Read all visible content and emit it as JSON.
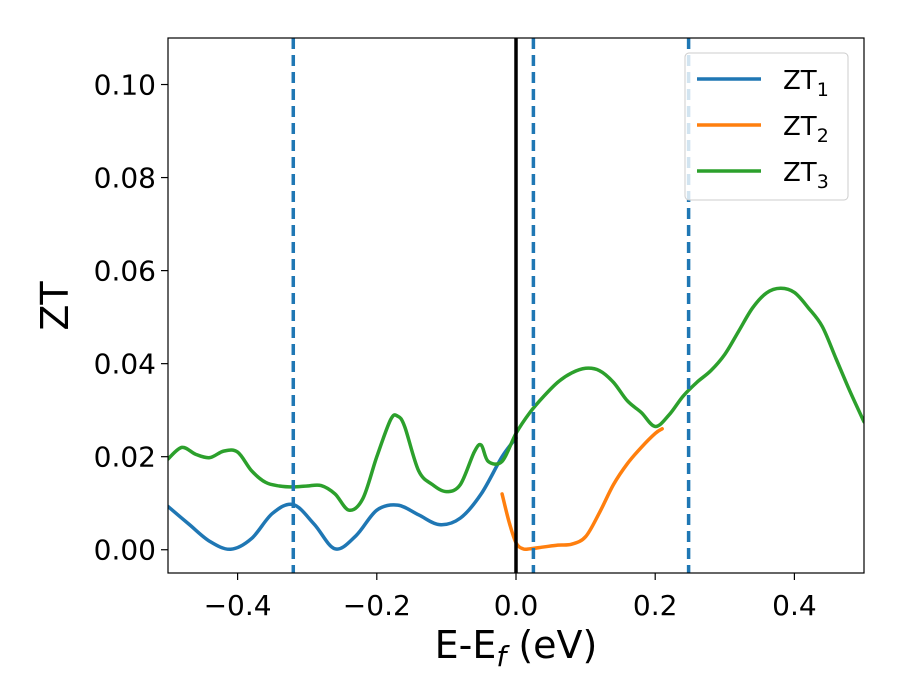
{
  "chart_data": {
    "type": "line",
    "title": "",
    "xlabel": "E-E",
    "xlabel_sub": "f",
    "xlabel_unit": " (eV)",
    "ylabel": "ZT",
    "xlim": [
      -0.5,
      0.5
    ],
    "ylim": [
      -0.005,
      0.11
    ],
    "xticks": [
      -0.4,
      -0.2,
      0.0,
      0.2,
      0.4
    ],
    "xtick_labels": [
      "−0.4",
      "−0.2",
      "0.0",
      "0.2",
      "0.4"
    ],
    "yticks": [
      0.0,
      0.02,
      0.04,
      0.06,
      0.08,
      0.1
    ],
    "ytick_labels": [
      "0.00",
      "0.02",
      "0.04",
      "0.06",
      "0.08",
      "0.10"
    ],
    "grid": false,
    "legend_position": "top-right",
    "fermi_line": {
      "x": 0.0,
      "color": "#000000"
    },
    "dashed_lines": {
      "x": [
        -0.32,
        0.025,
        0.248
      ],
      "color": "#1f77b4"
    },
    "series": [
      {
        "name": "ZT",
        "name_sub": "1",
        "color": "#1f77b4",
        "x": [
          -0.5,
          -0.47,
          -0.44,
          -0.41,
          -0.38,
          -0.35,
          -0.32,
          -0.29,
          -0.26,
          -0.23,
          -0.2,
          -0.17,
          -0.14,
          -0.11,
          -0.08,
          -0.05,
          -0.02,
          0.0
        ],
        "y": [
          0.0093,
          0.0055,
          0.0018,
          0.0001,
          0.0024,
          0.0078,
          0.0097,
          0.0055,
          0.0002,
          0.003,
          0.0085,
          0.0096,
          0.0075,
          0.0054,
          0.0068,
          0.012,
          0.02,
          0.024
        ]
      },
      {
        "name": "ZT",
        "name_sub": "2",
        "color": "#ff7f0e",
        "x": [
          -0.02,
          -0.01,
          0.0,
          0.01,
          0.02,
          0.04,
          0.06,
          0.08,
          0.1,
          0.12,
          0.14,
          0.16,
          0.18,
          0.2,
          0.21
        ],
        "y": [
          0.012,
          0.006,
          0.0015,
          0.0002,
          0.0002,
          0.0006,
          0.001,
          0.0012,
          0.0028,
          0.008,
          0.014,
          0.0185,
          0.022,
          0.025,
          0.026
        ]
      },
      {
        "name": "ZT",
        "name_sub": "3",
        "color": "#2ca02c",
        "x": [
          -0.5,
          -0.48,
          -0.46,
          -0.44,
          -0.42,
          -0.4,
          -0.38,
          -0.36,
          -0.34,
          -0.32,
          -0.3,
          -0.28,
          -0.26,
          -0.24,
          -0.22,
          -0.2,
          -0.18,
          -0.17,
          -0.16,
          -0.14,
          -0.12,
          -0.1,
          -0.08,
          -0.06,
          -0.05,
          -0.04,
          -0.02,
          0.0,
          0.02,
          0.04,
          0.06,
          0.08,
          0.1,
          0.12,
          0.14,
          0.16,
          0.18,
          0.2,
          0.22,
          0.24,
          0.26,
          0.28,
          0.3,
          0.32,
          0.34,
          0.36,
          0.38,
          0.4,
          0.42,
          0.44,
          0.46,
          0.48,
          0.5
        ],
        "y": [
          0.0195,
          0.022,
          0.0205,
          0.0198,
          0.0212,
          0.021,
          0.017,
          0.0145,
          0.0137,
          0.0135,
          0.0137,
          0.0138,
          0.012,
          0.0085,
          0.011,
          0.02,
          0.028,
          0.0287,
          0.0265,
          0.017,
          0.014,
          0.0125,
          0.014,
          0.021,
          0.0225,
          0.019,
          0.019,
          0.025,
          0.0295,
          0.033,
          0.036,
          0.038,
          0.039,
          0.0385,
          0.036,
          0.032,
          0.0295,
          0.0265,
          0.029,
          0.033,
          0.036,
          0.0385,
          0.042,
          0.047,
          0.052,
          0.0552,
          0.0562,
          0.0553,
          0.052,
          0.048,
          0.041,
          0.034,
          0.0275
        ]
      }
    ]
  }
}
